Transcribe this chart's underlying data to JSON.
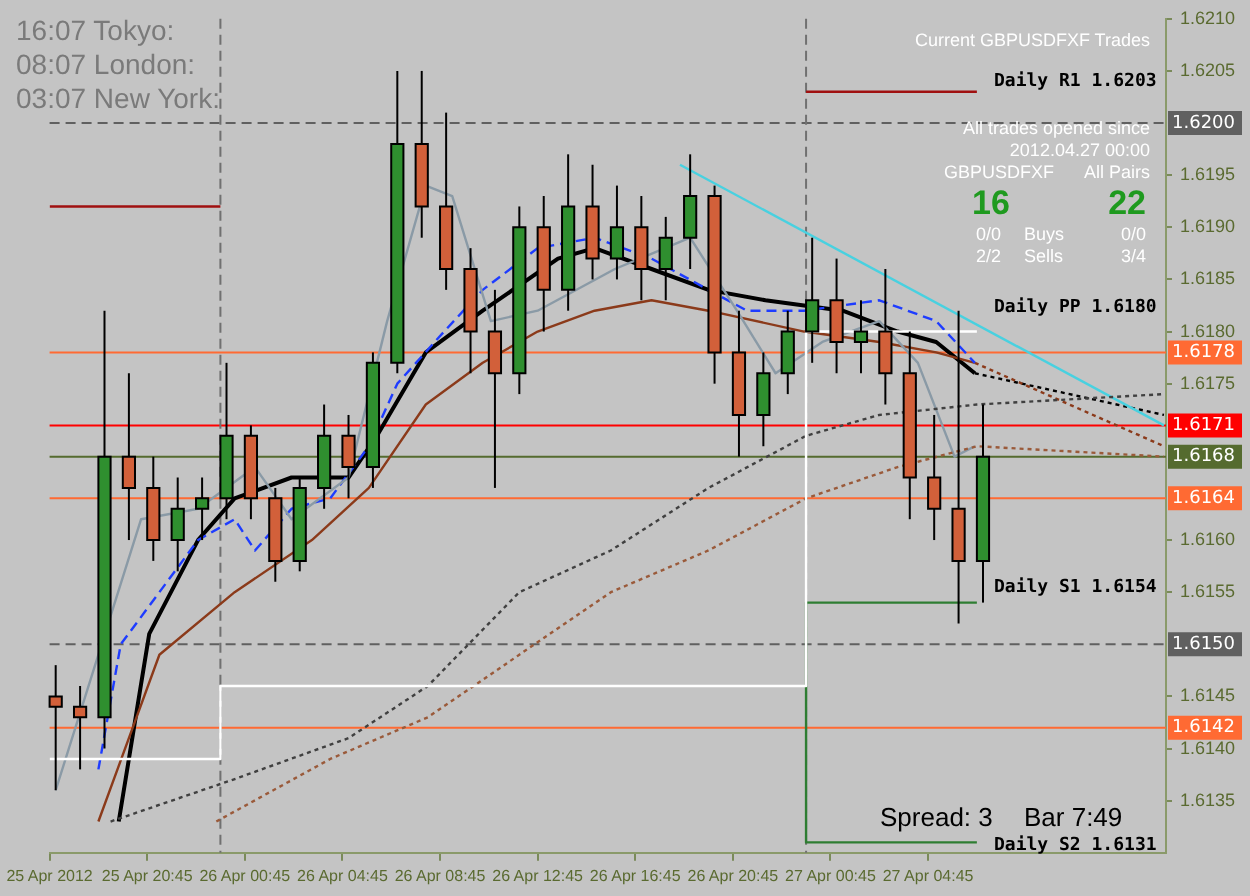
{
  "chart_data": {
    "type": "candlestick",
    "annotations": [
      "16:07 Tokyo:",
      "08:07 London:",
      "03:07 New York:",
      "Current GBPUSDFXF Trades",
      "All trades opened since",
      "2012.04.27 00:00",
      "GBPUSDFXF",
      "All Pairs",
      "16",
      "22",
      "0/0",
      "Buys",
      "0/0",
      "2/2",
      "Sells",
      "3/4",
      "Spread: 3",
      "Bar 7:49",
      "Daily R1 1.6203",
      "Daily PP 1.6180",
      "Daily S1 1.6154",
      "Daily S2 1.6131"
    ],
    "xlim": [
      "2012-04-25T16:45",
      "2012-04-27T14:30"
    ],
    "xticks": [
      {
        "value": "2012-04-25T16:45",
        "label": "25 Apr 2012"
      },
      {
        "value": "2012-04-25T20:45",
        "label": "25 Apr 20:45"
      },
      {
        "value": "2012-04-26T00:45",
        "label": "26 Apr 00:45"
      },
      {
        "value": "2012-04-26T04:45",
        "label": "26 Apr 04:45"
      },
      {
        "value": "2012-04-26T08:45",
        "label": "26 Apr 08:45"
      },
      {
        "value": "2012-04-26T12:45",
        "label": "26 Apr 12:45"
      },
      {
        "value": "2012-04-26T16:45",
        "label": "26 Apr 16:45"
      },
      {
        "value": "2012-04-26T20:45",
        "label": "26 Apr 20:45"
      },
      {
        "value": "2012-04-27T00:45",
        "label": "27 Apr 00:45"
      },
      {
        "value": "2012-04-27T04:45",
        "label": "27 Apr 04:45"
      }
    ],
    "ylim": [
      1.613,
      1.621
    ],
    "yticks": [
      1.6135,
      {
        "value": 1.614,
        "label": "1.6140"
      },
      1.6145,
      1.6155,
      {
        "value": 1.616,
        "label": "1.6160"
      },
      1.6175,
      {
        "value": 1.618,
        "label": "1.6180"
      },
      1.6185,
      {
        "value": 1.619,
        "label": "1.6190"
      },
      1.6195,
      1.6205,
      {
        "value": 1.621,
        "label": "1.6210"
      }
    ],
    "legend": false,
    "grid": false,
    "ref_lines": [
      {
        "axis": "y",
        "value": 1.62,
        "label": "1.6200",
        "color": "#606060",
        "line_style": "dashed"
      },
      {
        "axis": "y",
        "value": 1.6178,
        "label": "1.6178",
        "color": "#ff6a33",
        "line_style": "solid"
      },
      {
        "axis": "y",
        "value": 1.6171,
        "label": "1.6171",
        "color": "#ff0000",
        "line_style": "solid"
      },
      {
        "axis": "y",
        "value": 1.6168,
        "label": "1.6168",
        "color": "#556b2f",
        "line_style": "solid"
      },
      {
        "axis": "y",
        "value": 1.6164,
        "label": "1.6164",
        "color": "#ff6a33",
        "line_style": "solid"
      },
      {
        "axis": "y",
        "value": 1.615,
        "label": "1.6150",
        "color": "#606060",
        "line_style": "dashed"
      },
      {
        "axis": "y",
        "value": 1.6142,
        "label": "1.6142",
        "color": "#ff6a33",
        "line_style": "solid"
      },
      {
        "axis": "x",
        "value": "2012-04-25T23:45",
        "color": "#707070",
        "line_style": "dashed"
      },
      {
        "axis": "x",
        "value": "2012-04-26T23:45",
        "color": "#707070",
        "line_style": "dashed"
      }
    ],
    "series": [
      {
        "type": "line",
        "color": "#a01010",
        "line_style": "solid",
        "x": [
          "2012-04-25T16:45",
          "2012-04-25T23:45",
          "2012-04-26T00:00",
          "2012-04-26T23:45",
          "2012-04-27T06:45"
        ],
        "values": [
          1.6192,
          1.6192,
          null,
          1.6203,
          1.6203
        ]
      },
      {
        "type": "line",
        "color": "#ffffff",
        "line_style": "solid",
        "x": [
          "2012-04-25T16:45",
          "2012-04-25T23:45",
          "2012-04-25T23:45",
          "2012-04-26T23:45",
          "2012-04-26T23:45",
          "2012-04-27T06:45"
        ],
        "values": [
          1.6139,
          1.6139,
          1.6146,
          1.6146,
          1.618,
          1.618
        ]
      },
      {
        "type": "line",
        "color": "#2e7d32",
        "line_style": "solid",
        "x": [
          "2012-04-27T06:45",
          "2012-04-26T23:45",
          "2012-04-26T23:45",
          "2012-04-27T06:45"
        ],
        "values": [
          1.6131,
          1.6131,
          1.6154,
          1.6154
        ]
      },
      {
        "type": "line",
        "color": "#404040",
        "line_style": "dotted",
        "x": [
          "2012-04-25T19:15",
          "2012-04-26T00:15",
          "2012-04-26T05:00",
          "2012-04-26T08:15",
          "2012-04-26T12:00",
          "2012-04-26T15:45",
          "2012-04-26T19:45",
          "2012-04-26T23:45",
          "2012-04-27T02:45",
          "2012-04-27T06:45",
          "2012-04-27T14:25"
        ],
        "values": [
          1.6133,
          1.6137,
          1.6141,
          1.6146,
          1.6155,
          1.6159,
          1.6165,
          1.617,
          1.6172,
          1.6173,
          1.6174
        ]
      },
      {
        "type": "line",
        "color": "#9a5a3a",
        "line_style": "dotted",
        "x": [
          "2012-04-25T23:35",
          "2012-04-26T04:15",
          "2012-04-26T08:15",
          "2012-04-26T12:00",
          "2012-04-26T15:45",
          "2012-04-26T19:45",
          "2012-04-26T23:45",
          "2012-04-27T03:30",
          "2012-04-27T06:45",
          "2012-04-27T14:25"
        ],
        "values": [
          1.6133,
          1.6139,
          1.6143,
          1.6149,
          1.6155,
          1.6159,
          1.6164,
          1.6167,
          1.6169,
          1.6168
        ]
      },
      {
        "type": "line",
        "color": "#48d1e0",
        "line_style": "solid",
        "x": [
          "2012-04-26T18:35",
          "2012-04-27T14:25"
        ],
        "values": [
          1.6196,
          1.6171
        ]
      },
      {
        "type": "line",
        "color": "#8a9aa6",
        "line_style": "solid",
        "x": [
          "2012-04-25T17:00",
          "2012-04-25T18:55",
          "2012-04-25T20:30",
          "2012-04-25T22:50",
          "2012-04-25T23:55",
          "2012-04-26T01:10",
          "2012-04-26T02:40",
          "2012-04-26T05:00",
          "2012-04-26T06:35",
          "2012-04-26T08:10",
          "2012-04-26T09:15",
          "2012-04-26T10:50",
          "2012-04-26T12:45",
          "2012-04-26T15:55",
          "2012-04-26T19:00",
          "2012-04-26T20:55",
          "2012-04-26T22:30",
          "2012-04-27T00:25",
          "2012-04-27T02:45",
          "2012-04-27T04:20",
          "2012-04-27T05:50",
          "2012-04-27T06:40"
        ],
        "values": [
          1.6136,
          null,
          1.6162,
          1.6163,
          null,
          1.6167,
          1.6162,
          1.6166,
          1.6181,
          1.6194,
          1.6193,
          1.6181,
          1.6182,
          1.6186,
          1.6189,
          1.6182,
          1.6176,
          1.6179,
          1.6181,
          1.6177,
          1.6168,
          1.6169
        ]
      },
      {
        "type": "line",
        "color": "#1e3cff",
        "line_style": "dashed",
        "x": [
          "2012-04-25T18:45",
          "2012-04-25T19:40",
          "2012-04-25T21:15",
          "2012-04-25T22:50",
          "2012-04-26T00:20",
          "2012-04-26T01:10",
          "2012-04-26T02:40",
          "2012-04-26T04:15",
          "2012-04-26T05:50",
          "2012-04-26T07:00",
          "2012-04-26T08:55",
          "2012-04-26T10:30",
          "2012-04-26T12:45",
          "2012-04-26T15:05",
          "2012-04-26T17:25",
          "2012-04-26T19:45",
          "2012-04-26T21:20",
          "2012-04-26T23:40",
          "2012-04-27T02:45",
          "2012-04-27T05:05",
          "2012-04-27T06:40"
        ],
        "values": [
          1.6138,
          1.615,
          1.6155,
          1.616,
          1.6162,
          1.6159,
          1.6163,
          1.6164,
          1.6169,
          1.6175,
          1.618,
          1.6184,
          1.6188,
          1.6189,
          1.6187,
          1.6184,
          1.6182,
          1.6182,
          1.6183,
          1.6181,
          1.6177
        ]
      },
      {
        "type": "line",
        "color": "#8b3a1a",
        "line_style": "solid",
        "x": [
          "2012-04-25T18:45",
          "2012-04-25T21:15",
          "2012-04-26T00:20",
          "2012-04-26T03:30",
          "2012-04-26T05:50",
          "2012-04-26T08:10",
          "2012-04-26T10:30",
          "2012-04-26T12:45",
          "2012-04-26T15:05",
          "2012-04-26T17:25",
          "2012-04-26T19:45",
          "2012-04-26T23:40",
          "2012-04-27T02:45",
          "2012-04-27T05:05",
          "2012-04-27T06:40"
        ],
        "values": [
          1.6133,
          1.6149,
          1.6155,
          1.616,
          1.6165,
          1.6173,
          1.6177,
          1.618,
          1.6182,
          1.6183,
          1.6182,
          1.618,
          1.6179,
          1.6178,
          1.6177
        ]
      },
      {
        "type": "line",
        "color": "#8b3a1a",
        "line_style": "dotted",
        "x": [
          "2012-04-27T06:40",
          "2012-04-27T14:25"
        ],
        "values": [
          1.6177,
          1.6169
        ]
      },
      {
        "type": "line",
        "color": "#000000",
        "line_style": "solid",
        "x": [
          "2012-04-25T19:35",
          "2012-04-25T20:50",
          "2012-04-25T22:50",
          "2012-04-26T00:20",
          "2012-04-26T02:40",
          "2012-04-26T05:00",
          "2012-04-26T06:10",
          "2012-04-26T08:10",
          "2012-04-26T10:30",
          "2012-04-26T13:35",
          "2012-04-26T15:05",
          "2012-04-26T17:25",
          "2012-04-26T19:45",
          "2012-04-26T22:05",
          "2012-04-27T01:15",
          "2012-04-27T03:30",
          "2012-04-27T05:05",
          "2012-04-27T06:40"
        ],
        "values": [
          1.6133,
          1.6151,
          1.616,
          1.6164,
          1.6166,
          1.6166,
          1.617,
          1.6178,
          1.6182,
          1.6187,
          1.6188,
          1.6186,
          1.6184,
          1.6183,
          1.6182,
          1.618,
          1.6179,
          1.6176
        ]
      },
      {
        "type": "line",
        "color": "#000000",
        "line_style": "dotted",
        "x": [
          "2012-04-27T06:40",
          "2012-04-27T14:25"
        ],
        "values": [
          1.6176,
          1.6172
        ]
      },
      {
        "x": [
          "2012-04-25T17:00",
          "2012-04-25T18:00",
          "2012-04-25T19:00",
          "2012-04-25T20:00",
          "2012-04-25T21:00",
          "2012-04-25T22:00",
          "2012-04-25T23:00",
          "2012-04-26T00:00",
          "2012-04-26T01:00",
          "2012-04-26T02:00",
          "2012-04-26T03:00",
          "2012-04-26T04:00",
          "2012-04-26T05:00",
          "2012-04-26T06:00",
          "2012-04-26T07:00",
          "2012-04-26T08:00",
          "2012-04-26T09:00",
          "2012-04-26T10:00",
          "2012-04-26T11:00",
          "2012-04-26T12:00",
          "2012-04-26T13:00",
          "2012-04-26T14:00",
          "2012-04-26T15:00",
          "2012-04-26T16:00",
          "2012-04-26T17:00",
          "2012-04-26T18:00",
          "2012-04-26T19:00",
          "2012-04-26T20:00",
          "2012-04-26T21:00",
          "2012-04-26T22:00",
          "2012-04-26T23:00",
          "2012-04-27T00:00",
          "2012-04-27T01:00",
          "2012-04-27T02:00",
          "2012-04-27T03:00",
          "2012-04-27T04:00",
          "2012-04-27T05:00",
          "2012-04-27T06:00",
          "2012-04-27T07:00"
        ],
        "ohlc": [
          [
            1.6145,
            1.6148,
            1.6136,
            1.6144
          ],
          [
            1.6144,
            1.6146,
            1.6138,
            1.6143
          ],
          [
            1.6143,
            1.6182,
            1.614,
            1.6168
          ],
          [
            1.6168,
            1.6176,
            1.616,
            1.6165
          ],
          [
            1.6165,
            1.6168,
            1.6158,
            1.616
          ],
          [
            1.616,
            1.6166,
            1.6157,
            1.6163
          ],
          [
            1.6163,
            1.6166,
            1.616,
            1.6164
          ],
          [
            1.6164,
            1.6177,
            1.6162,
            1.617
          ],
          [
            1.617,
            1.6171,
            1.6162,
            1.6164
          ],
          [
            1.6164,
            1.6165,
            1.6156,
            1.6158
          ],
          [
            1.6158,
            1.6166,
            1.6157,
            1.6165
          ],
          [
            1.6165,
            1.6173,
            1.6163,
            1.617
          ],
          [
            1.617,
            1.6172,
            1.6164,
            1.6167
          ],
          [
            1.6167,
            1.6178,
            1.6165,
            1.6177
          ],
          [
            1.6177,
            1.6205,
            1.6176,
            1.6198
          ],
          [
            1.6198,
            1.6205,
            1.6189,
            1.6192
          ],
          [
            1.6192,
            1.6201,
            1.6184,
            1.6186
          ],
          [
            1.6186,
            1.6188,
            1.6176,
            1.618
          ],
          [
            1.618,
            1.6184,
            1.6165,
            1.6176
          ],
          [
            1.6176,
            1.6192,
            1.6174,
            1.619
          ],
          [
            1.619,
            1.6193,
            1.618,
            1.6184
          ],
          [
            1.6184,
            1.6197,
            1.6182,
            1.6192
          ],
          [
            1.6192,
            1.6196,
            1.6185,
            1.6187
          ],
          [
            1.6187,
            1.6194,
            1.6185,
            1.619
          ],
          [
            1.619,
            1.6193,
            1.6183,
            1.6186
          ],
          [
            1.6186,
            1.6191,
            1.6183,
            1.6189
          ],
          [
            1.6189,
            1.6197,
            1.6186,
            1.6193
          ],
          [
            1.6193,
            1.6194,
            1.6175,
            1.6178
          ],
          [
            1.6178,
            1.6182,
            1.6168,
            1.6172
          ],
          [
            1.6172,
            1.6178,
            1.6169,
            1.6176
          ],
          [
            1.6176,
            1.6182,
            1.6174,
            1.618
          ],
          [
            1.618,
            1.6189,
            1.6177,
            1.6183
          ],
          [
            1.6183,
            1.6187,
            1.6176,
            1.6179
          ],
          [
            1.6179,
            1.6183,
            1.6176,
            1.618
          ],
          [
            1.618,
            1.6186,
            1.6173,
            1.6176
          ],
          [
            1.6176,
            1.618,
            1.6162,
            1.6166
          ],
          [
            1.6166,
            1.6172,
            1.616,
            1.6163
          ],
          [
            1.6163,
            1.6182,
            1.6152,
            1.6158
          ],
          [
            1.6158,
            1.6173,
            1.6154,
            1.6168
          ]
        ],
        "colors": [
          "#d2603a",
          "#d2603a",
          "#2f8f2f",
          "#d2603a",
          "#d2603a",
          "#2f8f2f",
          "#2f8f2f",
          "#2f8f2f",
          "#d2603a",
          "#d2603a",
          "#2f8f2f",
          "#2f8f2f",
          "#d2603a",
          "#2f8f2f",
          "#2f8f2f",
          "#d2603a",
          "#d2603a",
          "#d2603a",
          "#d2603a",
          "#2f8f2f",
          "#d2603a",
          "#2f8f2f",
          "#d2603a",
          "#2f8f2f",
          "#d2603a",
          "#2f8f2f",
          "#2f8f2f",
          "#d2603a",
          "#d2603a",
          "#2f8f2f",
          "#2f8f2f",
          "#2f8f2f",
          "#d2603a",
          "#2f8f2f",
          "#d2603a",
          "#d2603a",
          "#d2603a",
          "#d2603a",
          "#2f8f2f"
        ]
      }
    ]
  }
}
